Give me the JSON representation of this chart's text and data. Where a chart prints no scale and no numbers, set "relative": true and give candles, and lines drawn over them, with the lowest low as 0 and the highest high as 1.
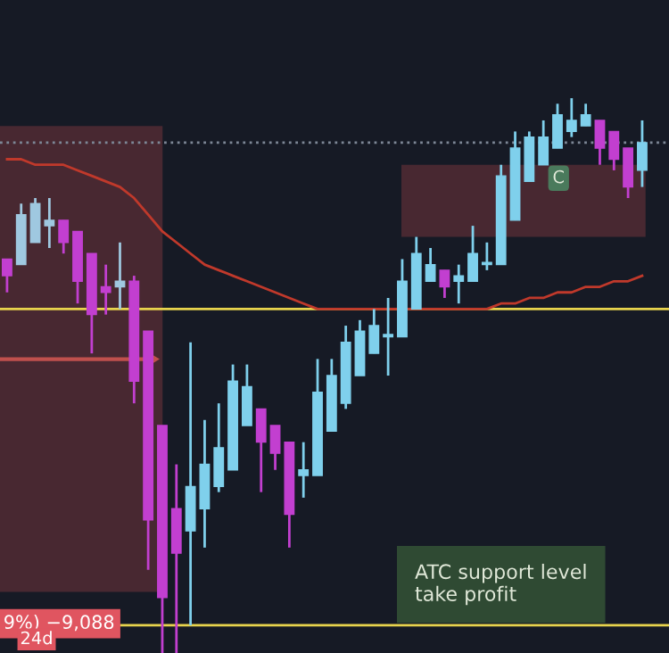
{
  "chart_data": {
    "type": "candlestick",
    "relative": true,
    "categories": [
      null,
      null,
      null,
      null,
      null,
      null,
      null,
      null,
      null,
      null,
      null,
      null,
      null,
      null,
      null,
      null,
      null,
      null,
      null,
      null,
      null,
      null,
      null,
      null,
      null,
      null,
      null,
      null,
      null,
      null,
      null,
      null,
      null,
      null,
      null,
      null,
      null,
      null,
      null,
      null,
      null,
      null,
      null,
      null,
      null,
      null
    ],
    "ohlc": [
      [
        0.71,
        0.71,
        0.65,
        0.68
      ],
      [
        0.7,
        0.81,
        0.7,
        0.79
      ],
      [
        0.74,
        0.82,
        0.74,
        0.81
      ],
      [
        0.77,
        0.82,
        0.73,
        0.78
      ],
      [
        0.78,
        0.78,
        0.72,
        0.74
      ],
      [
        0.76,
        0.76,
        0.63,
        0.67
      ],
      [
        0.72,
        0.72,
        0.54,
        0.61
      ],
      [
        0.66,
        0.7,
        0.61,
        0.65
      ],
      [
        0.66,
        0.74,
        0.62,
        0.67
      ],
      [
        0.67,
        0.68,
        0.45,
        0.49
      ],
      [
        0.58,
        0.58,
        0.15,
        0.24
      ],
      [
        0.41,
        0.41,
        0,
        0.1
      ],
      [
        0.26,
        0.34,
        0,
        0.18
      ],
      [
        0.22,
        0.56,
        0.05,
        0.3
      ],
      [
        0.26,
        0.42,
        0.19,
        0.34
      ],
      [
        0.3,
        0.45,
        0.29,
        0.37
      ],
      [
        0.33,
        0.52,
        0.33,
        0.49
      ],
      [
        0.41,
        0.52,
        0.41,
        0.48
      ],
      [
        0.44,
        0.44,
        0.29,
        0.38
      ],
      [
        0.41,
        0.41,
        0.33,
        0.36
      ],
      [
        0.38,
        0.38,
        0.19,
        0.25
      ],
      [
        0.32,
        0.38,
        0.28,
        0.33
      ],
      [
        0.32,
        0.53,
        0.32,
        0.47
      ],
      [
        0.4,
        0.53,
        0.4,
        0.5
      ],
      [
        0.45,
        0.59,
        0.44,
        0.56
      ],
      [
        0.5,
        0.6,
        0.5,
        0.58
      ],
      [
        0.54,
        0.62,
        0.54,
        0.59
      ],
      [
        0.57,
        0.64,
        0.5,
        0.57
      ],
      [
        0.57,
        0.71,
        0.57,
        0.67
      ],
      [
        0.62,
        0.75,
        0.62,
        0.72
      ],
      [
        0.67,
        0.73,
        0.67,
        0.7
      ],
      [
        0.69,
        0.69,
        0.64,
        0.66
      ],
      [
        0.67,
        0.7,
        0.63,
        0.68
      ],
      [
        0.67,
        0.77,
        0.67,
        0.72
      ],
      [
        0.7,
        0.74,
        0.69,
        0.7
      ],
      [
        0.7,
        0.88,
        0.7,
        0.86
      ],
      [
        0.78,
        0.94,
        0.78,
        0.91
      ],
      [
        0.85,
        0.94,
        0.85,
        0.93
      ],
      [
        0.88,
        0.96,
        0.88,
        0.93
      ],
      [
        0.91,
        0.99,
        0.91,
        0.97
      ],
      [
        0.94,
        1.0,
        0.93,
        0.96
      ],
      [
        0.95,
        0.99,
        0.95,
        0.97
      ],
      [
        0.96,
        0.96,
        0.88,
        0.91
      ],
      [
        0.94,
        0.94,
        0.87,
        0.89
      ],
      [
        0.91,
        0.91,
        0.82,
        0.84
      ],
      [
        0.87,
        0.96,
        0.84,
        0.92
      ]
    ],
    "colors": [
      "#c23fd0",
      "#9fc8e0",
      "#9fc8e0",
      "#9fc8e0",
      "#c23fd0",
      "#c23fd0",
      "#c23fd0",
      "#c23fd0",
      "#9fc8e0",
      "#c23fd0",
      "#c23fd0",
      "#c23fd0",
      "#c23fd0",
      "#7fd0ec",
      "#7fd0ec",
      "#7fd0ec",
      "#7fd0ec",
      "#7fd0ec",
      "#c23fd0",
      "#c23fd0",
      "#c23fd0",
      "#7fd0ec",
      "#7fd0ec",
      "#7fd0ec",
      "#7fd0ec",
      "#7fd0ec",
      "#7fd0ec",
      "#7fd0ec",
      "#7fd0ec",
      "#7fd0ec",
      "#7fd0ec",
      "#c23fd0",
      "#7fd0ec",
      "#7fd0ec",
      "#7fd0ec",
      "#7fd0ec",
      "#7fd0ec",
      "#7fd0ec",
      "#7fd0ec",
      "#7fd0ec",
      "#7fd0ec",
      "#7fd0ec",
      "#c23fd0",
      "#c23fd0",
      "#c23fd0",
      "#7fd0ec"
    ],
    "series": [
      {
        "type": "line",
        "color": "#c0392b",
        "values": [
          0.89,
          0.89,
          0.88,
          0.88,
          0.88,
          0.87,
          0.86,
          0.85,
          0.84,
          0.82,
          0.79,
          0.76,
          0.74,
          0.72,
          0.7,
          0.69,
          0.68,
          0.67,
          0.66,
          0.65,
          0.64,
          0.63,
          0.62,
          0.62,
          0.62,
          0.62,
          0.62,
          0.62,
          0.62,
          0.62,
          0.62,
          0.62,
          0.62,
          0.62,
          0.62,
          0.63,
          0.63,
          0.64,
          0.64,
          0.65,
          0.65,
          0.66,
          0.66,
          0.67,
          0.67,
          0.68
        ]
      }
    ],
    "ref_lines": [
      {
        "axis": "y",
        "value": 0.62,
        "color": "#e8d44d",
        "line_style": "solid"
      },
      {
        "axis": "y",
        "value": 0.05,
        "color": "#e8d44d",
        "line_style": "solid"
      },
      {
        "axis": "y",
        "value": 0.92,
        "color": "#7d8796",
        "line_style": "dotted"
      }
    ],
    "bands": [
      {
        "axis": "y",
        "from": 0.11,
        "to": 0.95,
        "color": "#5a2d36"
      },
      {
        "axis": "y",
        "from": 0.75,
        "to": 0.88,
        "color": "#5a2d36"
      }
    ],
    "annotations": [
      "ATC support level\ntake profit",
      "C",
      "9%) −9,088",
      "24d"
    ]
  }
}
